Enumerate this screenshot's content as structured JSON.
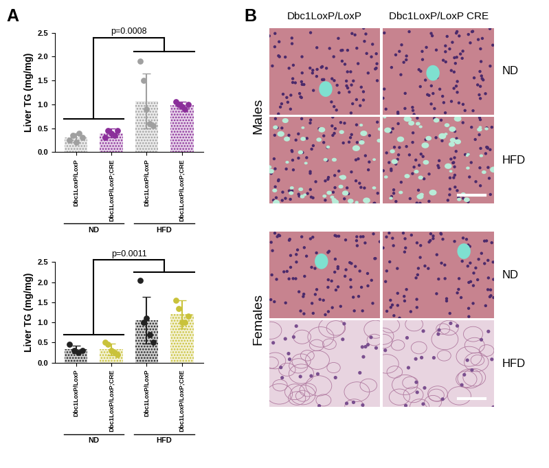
{
  "panel_labels": [
    "A",
    "B"
  ],
  "chart_data": [
    {
      "type": "bar",
      "y_label": "Liver TG (mg/mg)",
      "categories": [
        "Dbc1LoxP/LoxP",
        "Dbc1LoxP/LoxP;CRE",
        "Dbc1LoxP/LoxP",
        "Dbc1LoxP/LoxP;CRE"
      ],
      "groups": [
        "ND",
        "ND",
        "HFD",
        "HFD"
      ],
      "values": [
        0.3,
        0.4,
        1.07,
        0.98
      ],
      "errors": [
        0.1,
        0.1,
        0.57,
        0.07
      ],
      "points": [
        [
          0.25,
          0.35,
          0.2,
          0.4,
          0.3
        ],
        [
          0.3,
          0.45,
          0.4,
          0.35,
          0.45
        ],
        [
          1.9,
          1.5,
          0.9,
          0.6,
          0.55
        ],
        [
          1.05,
          1.0,
          0.95,
          0.9,
          1.0
        ]
      ],
      "colors": [
        "#a0a0a0",
        "#8b2f9a",
        "#a0a0a0",
        "#8b2f9a"
      ],
      "marker": "circle",
      "ylim": [
        0,
        2.5
      ],
      "yticks": [
        {
          "value": 0,
          "label": "0.0"
        },
        0.5,
        {
          "value": 1,
          "label": "1.0"
        },
        1.5,
        {
          "value": 2,
          "label": "2.0"
        },
        2.5
      ],
      "annotations": [
        {
          "text": "p=0.0008",
          "between": [
            "ND",
            "HFD"
          ]
        }
      ]
    },
    {
      "type": "bar",
      "y_label": "Liver TG (mg/mg)",
      "categories": [
        "Dbc1LoxP/LoxP",
        "Dbc1LoxP/LoxP;CRE",
        "Dbc1LoxP/LoxP",
        "Dbc1LoxP/LoxP;CRE"
      ],
      "groups": [
        "ND",
        "ND",
        "HFD",
        "HFD"
      ],
      "values": [
        0.33,
        0.33,
        1.05,
        1.2
      ],
      "errors": [
        0.1,
        0.15,
        0.58,
        0.35
      ],
      "points": [
        [
          0.45,
          0.3,
          0.25,
          0.3
        ],
        [
          0.5,
          0.45,
          0.3,
          0.25,
          0.2
        ],
        [
          2.05,
          1.0,
          1.1,
          0.7,
          0.5
        ],
        [
          1.55,
          1.35,
          1.0,
          1.0,
          1.15
        ]
      ],
      "colors": [
        "#222222",
        "#c9c23a",
        "#222222",
        "#c9c23a"
      ],
      "marker": "circle",
      "ylim": [
        0,
        2.5
      ],
      "yticks": [
        {
          "value": 0,
          "label": "0.0"
        },
        0.5,
        {
          "value": 1,
          "label": "1.0"
        },
        1.5,
        {
          "value": 2,
          "label": "2.0"
        },
        2.5
      ],
      "annotations": [
        {
          "text": "p=0.0011",
          "between": [
            "ND",
            "HFD"
          ]
        }
      ]
    }
  ],
  "histology": {
    "columns": [
      "Dbc1LoxP/LoxP",
      "Dbc1LoxP/LoxP CRE"
    ],
    "rows": [
      {
        "sex": "Males",
        "diets": [
          "ND",
          "HFD"
        ]
      },
      {
        "sex": "Females",
        "diets": [
          "ND",
          "HFD"
        ]
      }
    ]
  }
}
